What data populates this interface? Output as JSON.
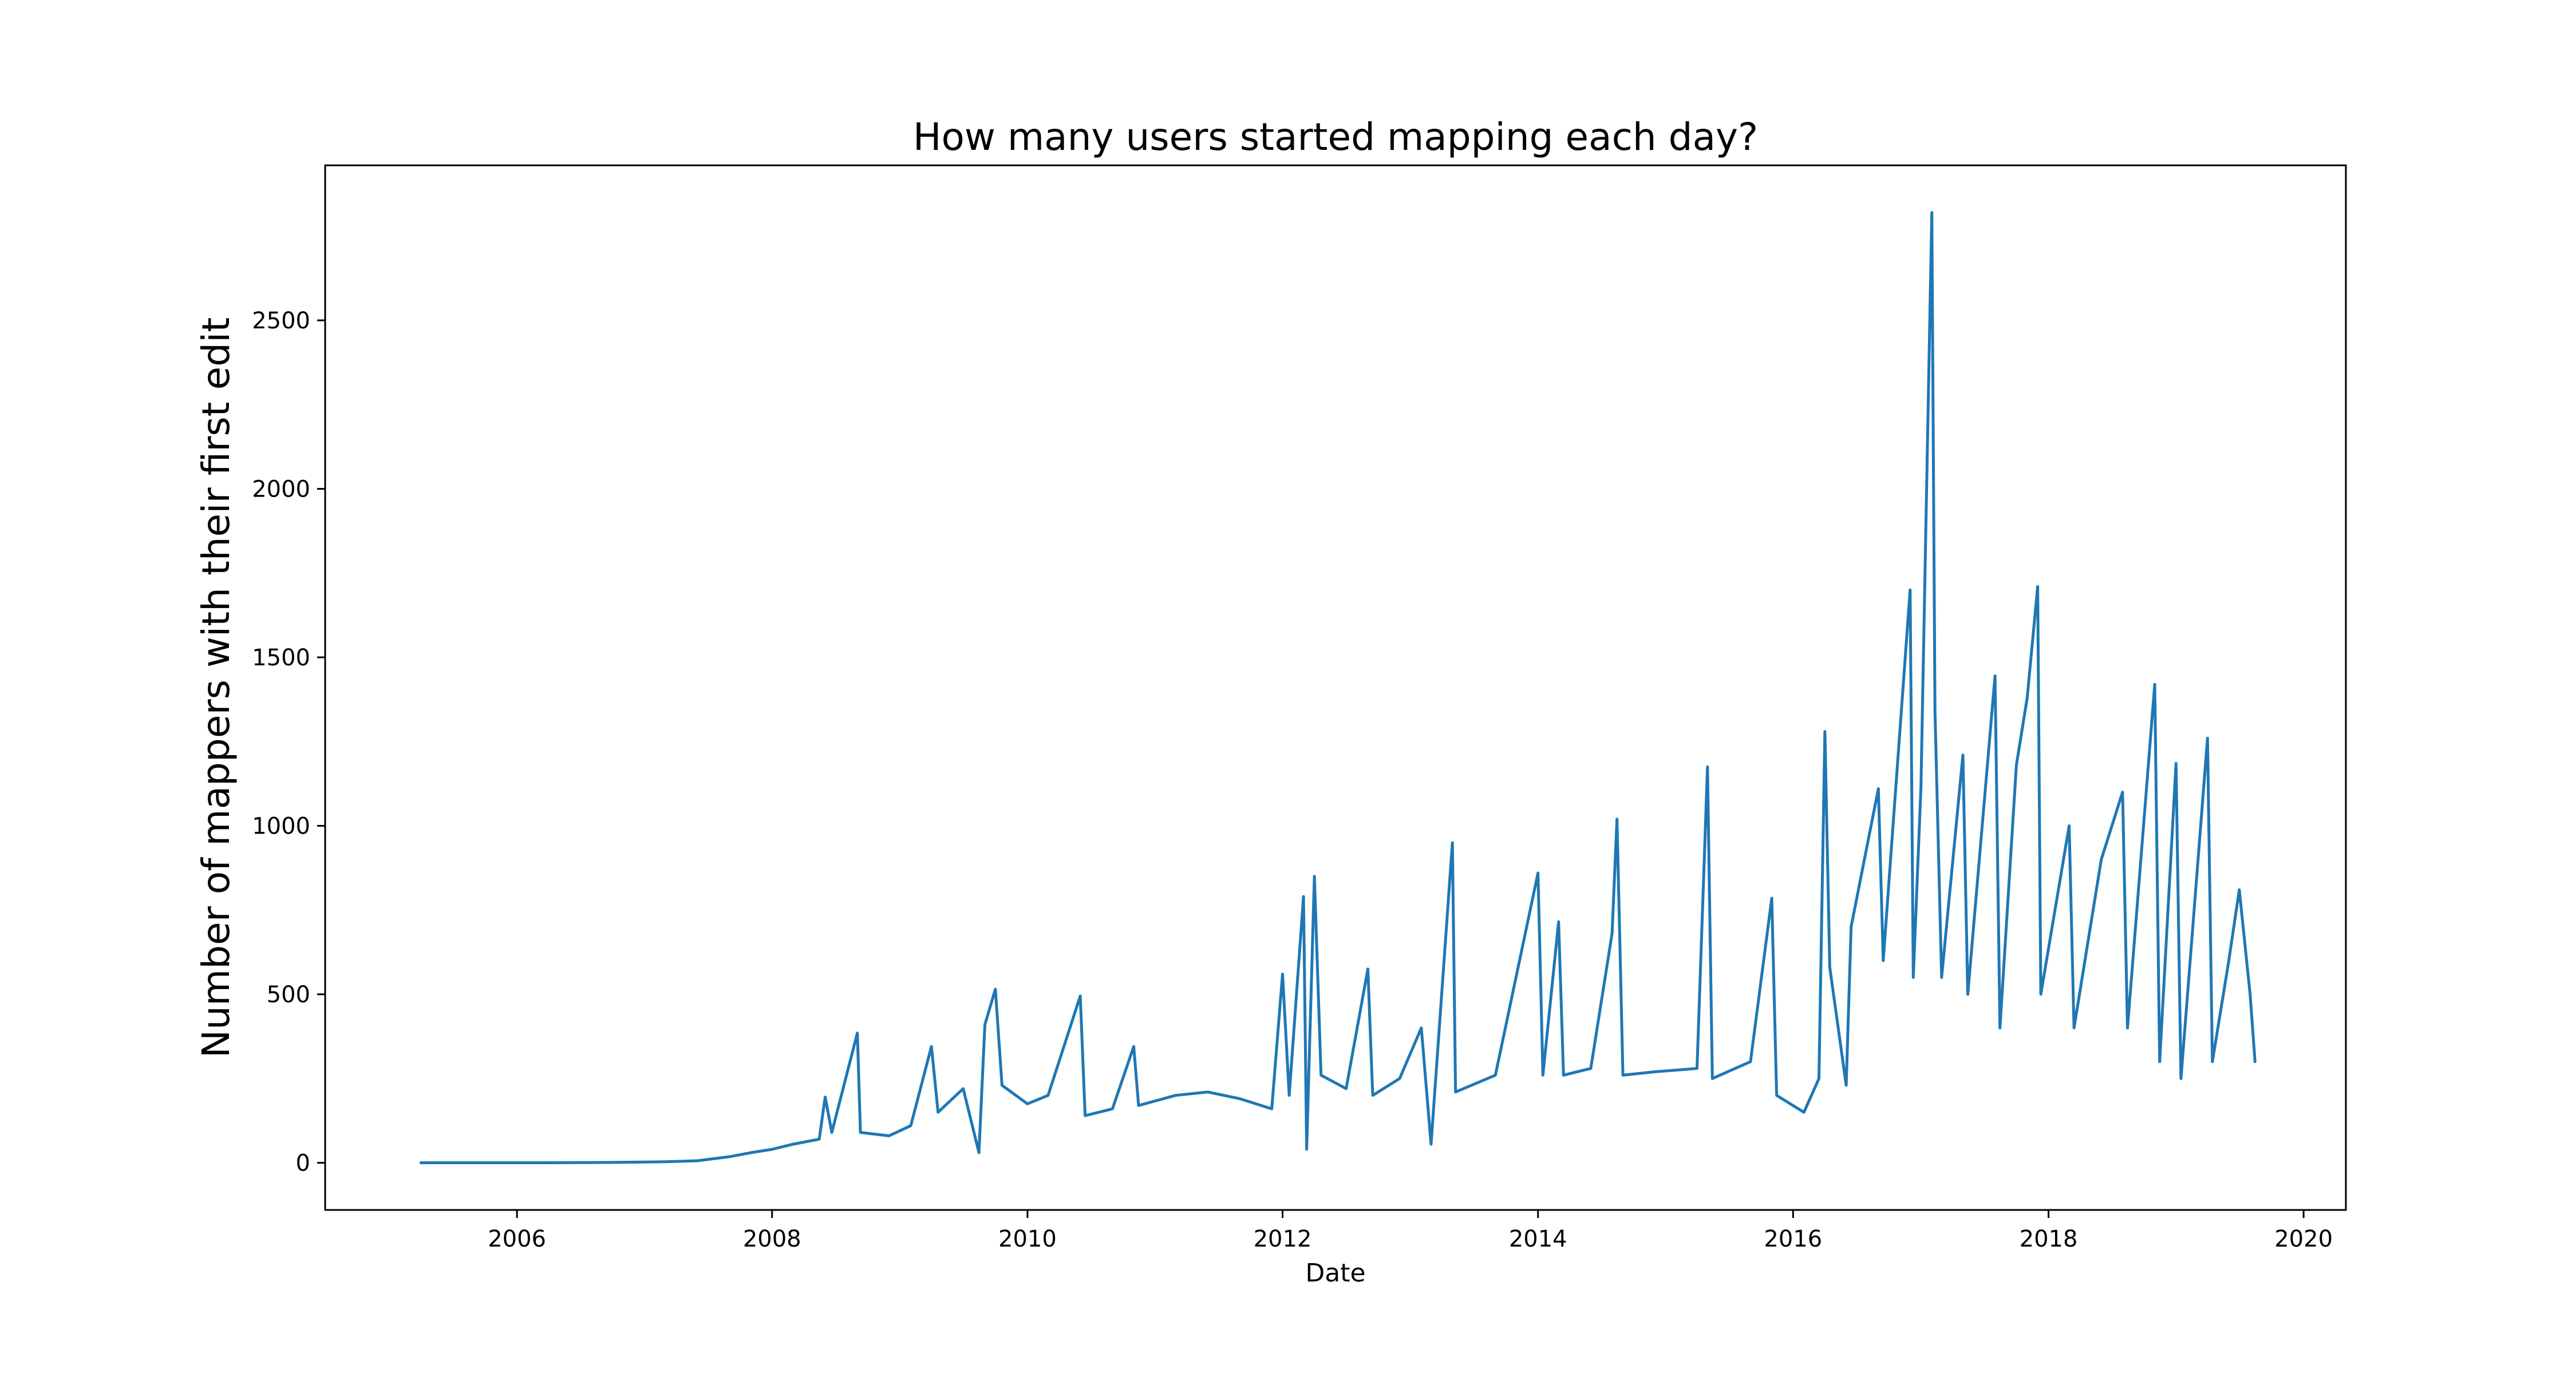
{
  "chart_data": {
    "type": "line",
    "title": "How many users started mapping each day?",
    "xlabel": "Date",
    "ylabel": "Number of mappers with their first edit",
    "x_type": "date",
    "xlim": [
      "2004-07-01",
      "2020-05-01"
    ],
    "ylim": [
      -140,
      2960
    ],
    "x_ticks": [
      "2006",
      "2008",
      "2010",
      "2012",
      "2014",
      "2016",
      "2018",
      "2020"
    ],
    "y_ticks": [
      0,
      500,
      1000,
      1500,
      2000,
      2500
    ],
    "grid": false,
    "legend": "none",
    "series_color": "#1f77b4",
    "series": [
      {
        "values": [
          [
            "2005-04-01",
            0
          ],
          [
            "2005-10-01",
            0
          ],
          [
            "2006-04-01",
            0
          ],
          [
            "2006-10-01",
            1
          ],
          [
            "2007-03-01",
            3
          ],
          [
            "2007-06-01",
            6
          ],
          [
            "2007-09-01",
            18
          ],
          [
            "2007-11-01",
            30
          ],
          [
            "2008-01-01",
            40
          ],
          [
            "2008-03-01",
            55
          ],
          [
            "2008-05-15",
            70
          ],
          [
            "2008-06-01",
            195
          ],
          [
            "2008-06-20",
            90
          ],
          [
            "2008-09-01",
            385
          ],
          [
            "2008-09-10",
            90
          ],
          [
            "2008-12-01",
            80
          ],
          [
            "2009-02-01",
            110
          ],
          [
            "2009-04-01",
            345
          ],
          [
            "2009-04-20",
            150
          ],
          [
            "2009-07-01",
            220
          ],
          [
            "2009-08-15",
            30
          ],
          [
            "2009-09-01",
            410
          ],
          [
            "2009-10-01",
            515
          ],
          [
            "2009-10-20",
            230
          ],
          [
            "2010-01-01",
            175
          ],
          [
            "2010-03-01",
            200
          ],
          [
            "2010-06-01",
            495
          ],
          [
            "2010-06-15",
            140
          ],
          [
            "2010-09-01",
            160
          ],
          [
            "2010-11-01",
            345
          ],
          [
            "2010-11-15",
            170
          ],
          [
            "2011-03-01",
            200
          ],
          [
            "2011-06-01",
            210
          ],
          [
            "2011-09-01",
            190
          ],
          [
            "2011-12-01",
            160
          ],
          [
            "2012-01-01",
            560
          ],
          [
            "2012-01-20",
            200
          ],
          [
            "2012-03-01",
            790
          ],
          [
            "2012-03-10",
            40
          ],
          [
            "2012-04-01",
            850
          ],
          [
            "2012-04-20",
            260
          ],
          [
            "2012-07-01",
            220
          ],
          [
            "2012-09-01",
            575
          ],
          [
            "2012-09-15",
            200
          ],
          [
            "2012-12-01",
            250
          ],
          [
            "2013-02-01",
            400
          ],
          [
            "2013-03-01",
            55
          ],
          [
            "2013-05-01",
            950
          ],
          [
            "2013-05-10",
            210
          ],
          [
            "2013-09-01",
            260
          ],
          [
            "2014-01-01",
            860
          ],
          [
            "2014-01-15",
            260
          ],
          [
            "2014-03-01",
            715
          ],
          [
            "2014-03-15",
            260
          ],
          [
            "2014-06-01",
            280
          ],
          [
            "2014-08-01",
            680
          ],
          [
            "2014-08-15",
            1020
          ],
          [
            "2014-09-01",
            260
          ],
          [
            "2014-12-01",
            270
          ],
          [
            "2015-04-01",
            280
          ],
          [
            "2015-05-01",
            1175
          ],
          [
            "2015-05-15",
            250
          ],
          [
            "2015-09-01",
            300
          ],
          [
            "2015-11-01",
            785
          ],
          [
            "2015-11-15",
            200
          ],
          [
            "2016-02-01",
            150
          ],
          [
            "2016-03-15",
            250
          ],
          [
            "2016-04-01",
            1280
          ],
          [
            "2016-04-15",
            580
          ],
          [
            "2016-06-01",
            230
          ],
          [
            "2016-06-15",
            700
          ],
          [
            "2016-09-01",
            1110
          ],
          [
            "2016-09-15",
            600
          ],
          [
            "2016-12-01",
            1700
          ],
          [
            "2016-12-10",
            550
          ],
          [
            "2017-01-01",
            1115
          ],
          [
            "2017-02-01",
            2820
          ],
          [
            "2017-02-10",
            1340
          ],
          [
            "2017-03-01",
            550
          ],
          [
            "2017-05-01",
            1210
          ],
          [
            "2017-05-15",
            500
          ],
          [
            "2017-08-01",
            1445
          ],
          [
            "2017-08-15",
            400
          ],
          [
            "2017-10-01",
            1180
          ],
          [
            "2017-11-01",
            1380
          ],
          [
            "2017-12-01",
            1710
          ],
          [
            "2017-12-10",
            500
          ],
          [
            "2018-03-01",
            1000
          ],
          [
            "2018-03-15",
            400
          ],
          [
            "2018-06-01",
            900
          ],
          [
            "2018-08-01",
            1100
          ],
          [
            "2018-08-15",
            400
          ],
          [
            "2018-11-01",
            1420
          ],
          [
            "2018-11-15",
            300
          ],
          [
            "2019-01-01",
            1185
          ],
          [
            "2019-01-15",
            250
          ],
          [
            "2019-04-01",
            1260
          ],
          [
            "2019-04-15",
            300
          ],
          [
            "2019-06-01",
            600
          ],
          [
            "2019-07-01",
            810
          ],
          [
            "2019-08-01",
            500
          ],
          [
            "2019-08-15",
            300
          ]
        ]
      }
    ]
  }
}
